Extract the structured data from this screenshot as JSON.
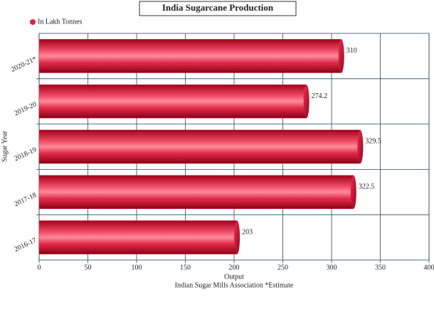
{
  "chart_data": {
    "type": "bar",
    "orientation": "horizontal",
    "title": "India Sugarcane Production",
    "x_label": "Output",
    "y_label": "Sugar Year",
    "caption": "Indian Sugar Mills Association *Estimate",
    "categories": [
      "2020-21*",
      "2019-20",
      "2018-19",
      "2017-18",
      "2016-17"
    ],
    "series": [
      {
        "name": "In Lakh Tonnes",
        "color": "#e0223f",
        "values": [
          310,
          274.2,
          329.5,
          322.5,
          203
        ]
      }
    ],
    "xlim": [
      0,
      400
    ],
    "xticks": [
      0,
      50,
      100,
      150,
      200,
      250,
      300,
      350,
      400
    ],
    "grid": true
  }
}
